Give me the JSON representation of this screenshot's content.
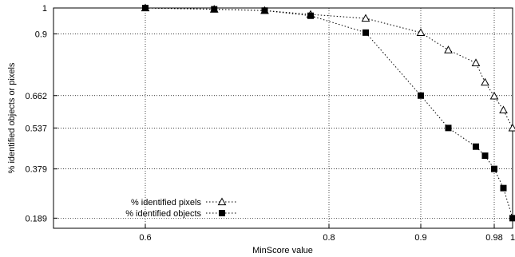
{
  "chart_data": {
    "type": "line",
    "xlabel": "MinScore value",
    "ylabel": "% identified objects or pixels",
    "xticks": [
      {
        "value": 0.6,
        "label": "0.6"
      },
      {
        "value": 0.8,
        "label": "0.8"
      },
      {
        "value": 0.9,
        "label": "0.9"
      },
      {
        "value": 0.98,
        "label": "0.98"
      },
      {
        "value": 1.0,
        "label": "1"
      }
    ],
    "yticks": [
      {
        "value": 1.0,
        "label": "1"
      },
      {
        "value": 0.9,
        "label": "0.9"
      },
      {
        "value": 0.662,
        "label": "0.662"
      },
      {
        "value": 0.537,
        "label": "0.537"
      },
      {
        "value": 0.379,
        "label": "0.379"
      },
      {
        "value": 0.189,
        "label": "0.189"
      }
    ],
    "xlim": [
      0.5,
      1.0
    ],
    "ylim": [
      0.15,
      1.0
    ],
    "grid": true,
    "legend_position": "bottom-left",
    "series": [
      {
        "name": "% identified pixels",
        "marker": "open-triangle",
        "points": [
          [
            0.6,
            1.0
          ],
          [
            0.675,
            0.995
          ],
          [
            0.73,
            0.99
          ],
          [
            0.78,
            0.975
          ],
          [
            0.84,
            0.96
          ],
          [
            0.9,
            0.905
          ],
          [
            0.93,
            0.838
          ],
          [
            0.96,
            0.788
          ],
          [
            0.97,
            0.713
          ],
          [
            0.98,
            0.66
          ],
          [
            0.99,
            0.606
          ],
          [
            1.0,
            0.537
          ]
        ]
      },
      {
        "name": "% identified objects",
        "marker": "filled-square",
        "points": [
          [
            0.6,
            1.0
          ],
          [
            0.675,
            0.995
          ],
          [
            0.73,
            0.99
          ],
          [
            0.78,
            0.97
          ],
          [
            0.84,
            0.905
          ],
          [
            0.9,
            0.662
          ],
          [
            0.93,
            0.537
          ],
          [
            0.96,
            0.465
          ],
          [
            0.97,
            0.43
          ],
          [
            0.98,
            0.379
          ],
          [
            0.99,
            0.305
          ],
          [
            1.0,
            0.189
          ]
        ]
      }
    ]
  }
}
